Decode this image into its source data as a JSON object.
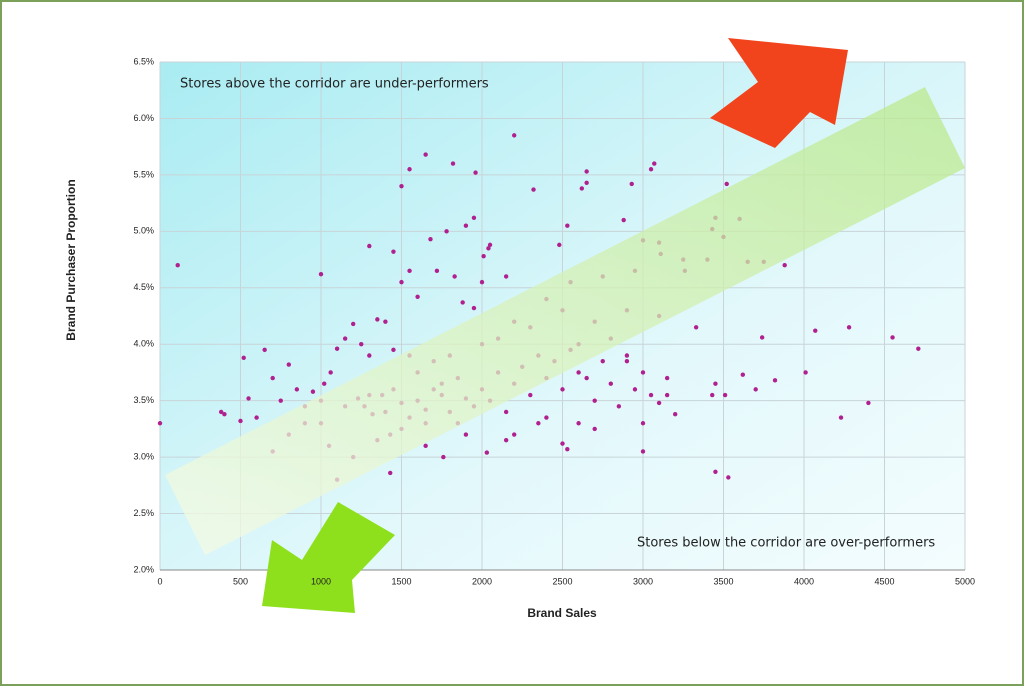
{
  "chart_data": {
    "type": "scatter",
    "x_label": "Brand Sales",
    "y_label": "Brand Purchaser Proportion",
    "annotations": [
      "Stores above the corridor are under-performers",
      "Stores below the corridor are over-performers"
    ],
    "color": "#b0208f",
    "x": [
      0,
      110,
      1000,
      1300,
      1450,
      1500,
      1550,
      1650,
      1820,
      1960,
      2200,
      1950,
      1900,
      1780,
      1680,
      1550,
      1720,
      2050,
      2040,
      2010,
      1830,
      2000,
      1880,
      1950,
      1600,
      1500,
      2150,
      2320,
      2620,
      2650,
      2650,
      2880,
      2930,
      3050,
      3070,
      3000,
      2530,
      2480,
      3110,
      3260,
      3430,
      3450,
      3600,
      3520,
      3650,
      3750,
      3880,
      4070,
      4280,
      4550,
      4710,
      4010,
      3820,
      3740,
      3330,
      3620,
      3450,
      3510,
      3430,
      3700,
      4230,
      4400,
      3450,
      3530,
      3000,
      2500,
      2530,
      2030,
      1760,
      1430,
      1430,
      1000,
      380,
      400,
      500,
      520,
      550,
      600,
      650,
      700,
      750,
      800,
      850,
      900,
      950,
      1020,
      1060,
      1100,
      1150,
      1200,
      1250,
      1300,
      1400,
      1350,
      1230,
      1270,
      1320,
      1380,
      1450,
      1500,
      1550,
      1600,
      1650,
      1700,
      1750,
      1800,
      1850,
      1900,
      1950,
      2000,
      2050,
      2100,
      2150,
      2200,
      2250,
      2300,
      2350,
      2400,
      2450,
      2500,
      2550,
      2600,
      2650,
      2700,
      2750,
      2800,
      2850,
      2900,
      2950,
      3000,
      3050,
      3100,
      3150,
      3200,
      2700,
      2600,
      2400,
      2200,
      1900,
      1650,
      1500,
      1350,
      1200,
      1100,
      1050,
      900,
      800,
      700,
      1600,
      1700,
      1800,
      1750,
      1450,
      1550,
      2100,
      2300,
      2500,
      2700,
      2900,
      3100,
      2800,
      2600,
      2900,
      3000,
      3150,
      2350,
      2150,
      1850,
      1650,
      1400,
      1300,
      1150,
      1000,
      2000,
      2200,
      2400,
      2550,
      2750,
      2950,
      3100,
      3250,
      3400,
      3500
    ],
    "values": [
      3.3,
      4.7,
      4.62,
      4.87,
      4.82,
      5.4,
      5.55,
      5.68,
      5.6,
      5.52,
      5.85,
      5.12,
      5.05,
      5.0,
      4.93,
      4.65,
      4.65,
      4.88,
      4.85,
      4.78,
      4.6,
      4.55,
      4.37,
      4.32,
      4.42,
      4.55,
      4.6,
      5.37,
      5.38,
      5.43,
      5.53,
      5.1,
      5.42,
      5.55,
      5.6,
      4.92,
      5.05,
      4.88,
      4.8,
      4.65,
      5.02,
      5.12,
      5.11,
      5.42,
      4.73,
      4.73,
      4.7,
      4.12,
      4.15,
      4.06,
      3.96,
      3.75,
      3.68,
      4.06,
      4.15,
      3.73,
      3.65,
      3.55,
      3.55,
      3.6,
      3.35,
      3.48,
      2.87,
      2.82,
      3.05,
      3.12,
      3.07,
      3.04,
      3.0,
      2.86,
      3.2,
      3.3,
      3.4,
      3.38,
      3.32,
      3.88,
      3.52,
      3.35,
      3.95,
      3.7,
      3.5,
      3.82,
      3.6,
      3.3,
      3.58,
      3.65,
      3.75,
      3.96,
      4.05,
      4.18,
      4.0,
      3.9,
      4.2,
      4.22,
      3.52,
      3.45,
      3.38,
      3.55,
      3.6,
      3.48,
      3.35,
      3.5,
      3.42,
      3.6,
      3.55,
      3.4,
      3.7,
      3.52,
      3.45,
      3.6,
      3.5,
      3.75,
      3.4,
      3.65,
      3.8,
      3.55,
      3.9,
      3.7,
      3.85,
      3.6,
      3.95,
      3.75,
      3.7,
      3.5,
      3.85,
      3.65,
      3.45,
      3.9,
      3.6,
      3.3,
      3.55,
      3.48,
      3.7,
      3.38,
      3.25,
      3.3,
      3.35,
      3.2,
      3.2,
      3.1,
      3.25,
      3.15,
      3.0,
      2.8,
      3.1,
      3.45,
      3.2,
      3.05,
      3.75,
      3.85,
      3.9,
      3.65,
      3.95,
      3.9,
      4.05,
      4.15,
      4.3,
      4.2,
      4.3,
      4.25,
      4.05,
      4.0,
      3.85,
      3.75,
      3.55,
      3.3,
      3.15,
      3.3,
      3.3,
      3.4,
      3.55,
      3.45,
      3.5,
      4.0,
      4.2,
      4.4,
      4.55,
      4.6,
      4.65,
      4.9,
      4.75,
      4.75,
      4.95
    ],
    "xlim": [
      0,
      5000
    ],
    "xticks": [
      0,
      500,
      1000,
      1500,
      2000,
      2500,
      3000,
      3500,
      4000,
      4500,
      5000
    ],
    "ylim": [
      2,
      6.5
    ],
    "yticks": [
      {
        "value": 2,
        "label": "2.0%"
      },
      {
        "value": 2.5,
        "label": "2.5%"
      },
      {
        "value": 3,
        "label": "3.0%"
      },
      {
        "value": 3.5,
        "label": "3.5%"
      },
      {
        "value": 4,
        "label": "4.0%"
      },
      {
        "value": 4.5,
        "label": "4.5%"
      },
      {
        "value": 5,
        "label": "5.0%"
      },
      {
        "value": 5.5,
        "label": "5.5%"
      },
      {
        "value": 6,
        "label": "6.0%"
      },
      {
        "value": 6.5,
        "label": "6.5%"
      }
    ],
    "grid": true
  }
}
